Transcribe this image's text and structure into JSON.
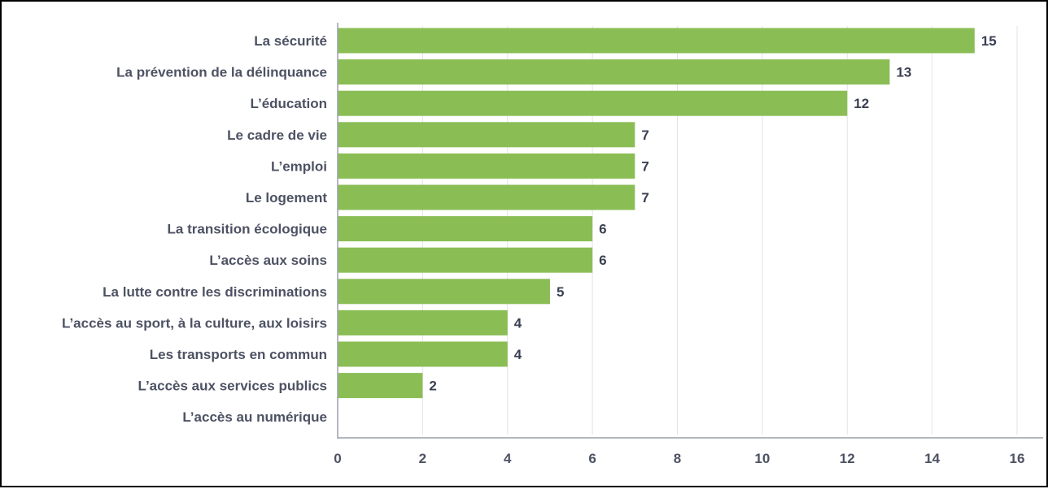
{
  "chart_data": {
    "type": "bar",
    "orientation": "horizontal",
    "categories": [
      "La sécurité",
      "La prévention de la délinquance",
      "L’éducation",
      "Le cadre de vie",
      "L’emploi",
      "Le logement",
      "La transition écologique",
      "L’accès aux soins",
      "La lutte contre les discriminations",
      "L’accès au sport, à la culture, aux loisirs",
      "Les transports en commun",
      "L’accès aux services publics",
      "L’accès au numérique"
    ],
    "values": [
      15,
      13,
      12,
      7,
      7,
      7,
      6,
      6,
      5,
      4,
      4,
      2,
      0
    ],
    "data_labels": [
      "15",
      "13",
      "12",
      "7",
      "7",
      "7",
      "6",
      "6",
      "5",
      "4",
      "4",
      "2",
      ""
    ],
    "x_ticks": [
      "0",
      "2",
      "4",
      "6",
      "8",
      "10",
      "12",
      "14",
      "16"
    ],
    "xlim": [
      0,
      16
    ],
    "title": "",
    "xlabel": "",
    "ylabel": "",
    "grid": "vertical",
    "legend": "none",
    "colors": {
      "bar": "#8bbd55",
      "label": "#4d5263",
      "data_label": "#3a3f52",
      "grid": "#e3e3e3",
      "axis": "#9aa0ac"
    }
  }
}
